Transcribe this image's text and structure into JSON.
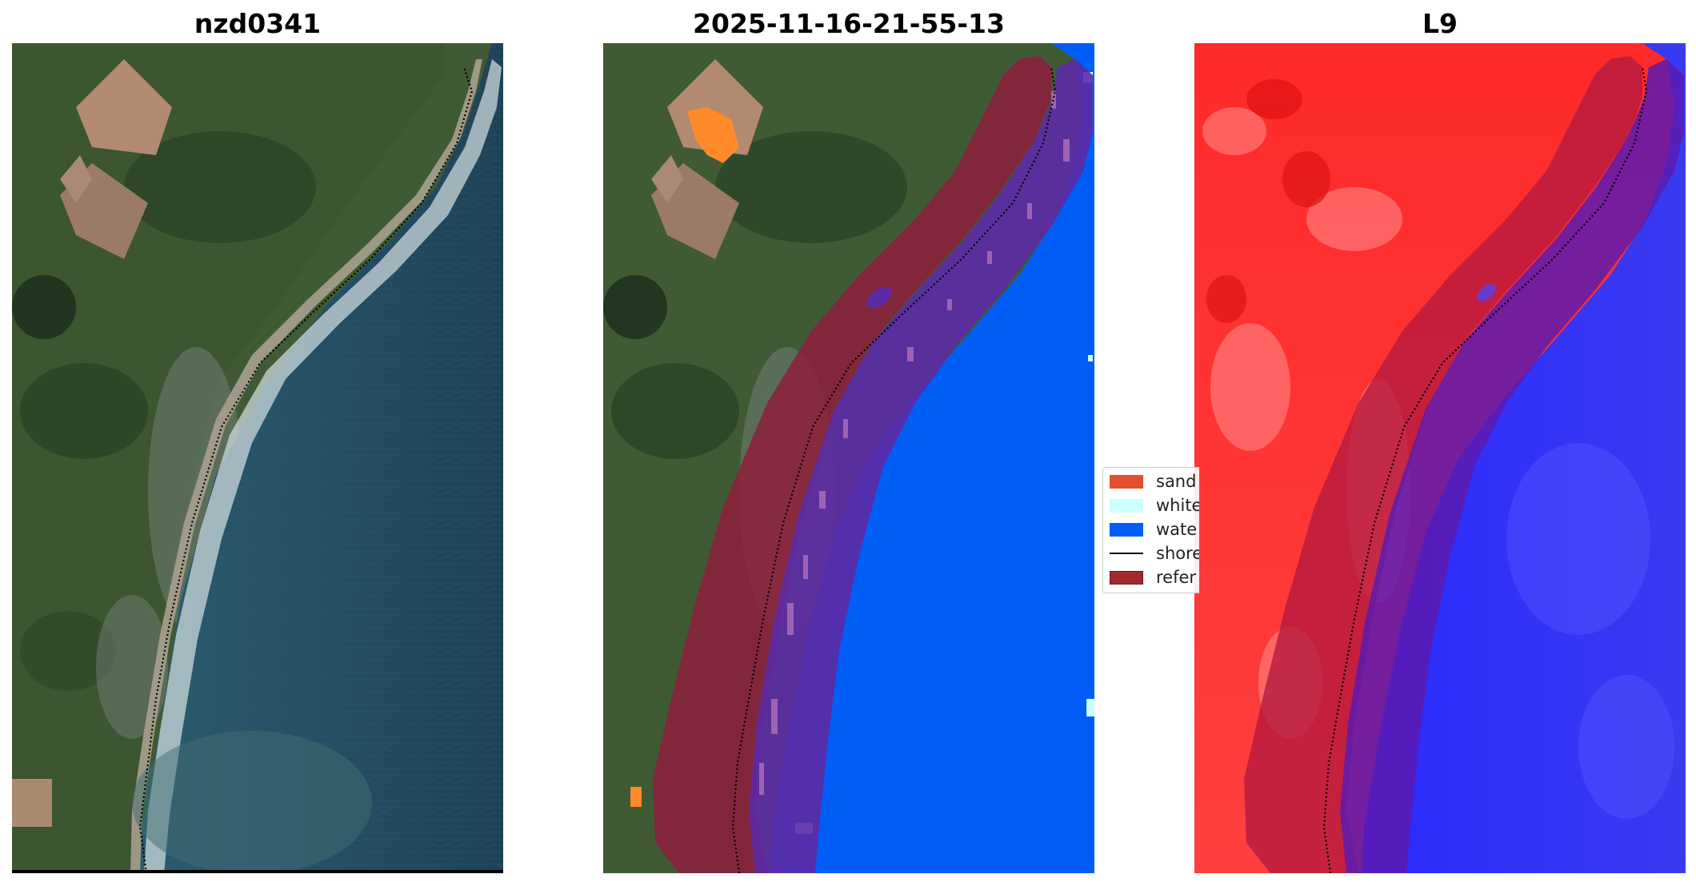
{
  "panels": [
    {
      "title": "nzd0341"
    },
    {
      "title": "2025-11-16-21-55-13"
    },
    {
      "title": "L9"
    }
  ],
  "legend": {
    "items": [
      {
        "label": "sand",
        "color": "#e2502d",
        "kind": "patch"
      },
      {
        "label": "white",
        "color": "#ccffff",
        "kind": "patch"
      },
      {
        "label": "wate",
        "color": "#005ef6",
        "kind": "patch"
      },
      {
        "label": "shore",
        "color": "#000000",
        "kind": "line"
      },
      {
        "label": "refer",
        "color": "#a1292e",
        "kind": "patch"
      }
    ]
  },
  "colors": {
    "water": "#005ef6",
    "sand": "#ff8a2a",
    "whitewater": "#ccffff",
    "reference_buffer": "#8e1e3c",
    "land_index": "#ff2a2a",
    "water_index": "#1a1aff",
    "shoreline": "#000000"
  }
}
